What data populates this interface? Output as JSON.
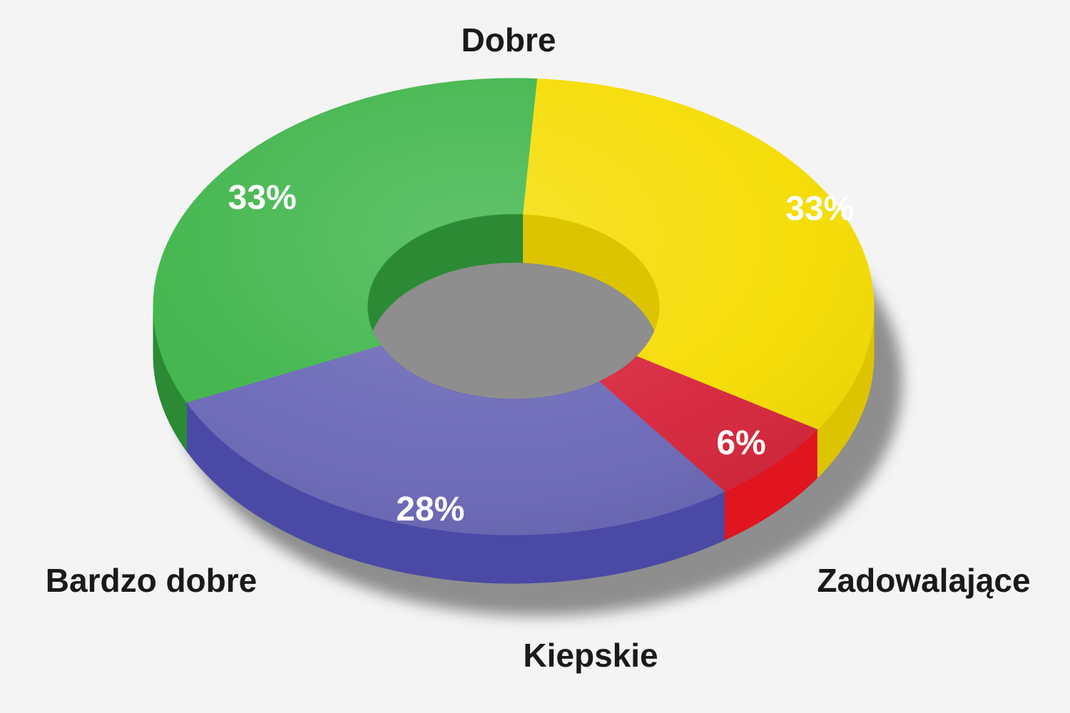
{
  "chart_data": {
    "type": "pie",
    "style": "3d-donut",
    "categories": [
      "Dobre",
      "Zadowalające",
      "Kiepskie",
      "Bardzo dobre"
    ],
    "values": [
      33,
      33,
      6,
      28
    ],
    "value_labels": [
      "33%",
      "33%",
      "6%",
      "28%"
    ],
    "unit": "%",
    "colors": [
      "#3fb54a",
      "#f5dc00",
      "#d6243a",
      "#6b68b8"
    ],
    "side_colors": [
      "#2c8a35",
      "#dcc400",
      "#e0151f",
      "#4a4aa6"
    ],
    "legend": "none",
    "labels_position": "outside"
  }
}
